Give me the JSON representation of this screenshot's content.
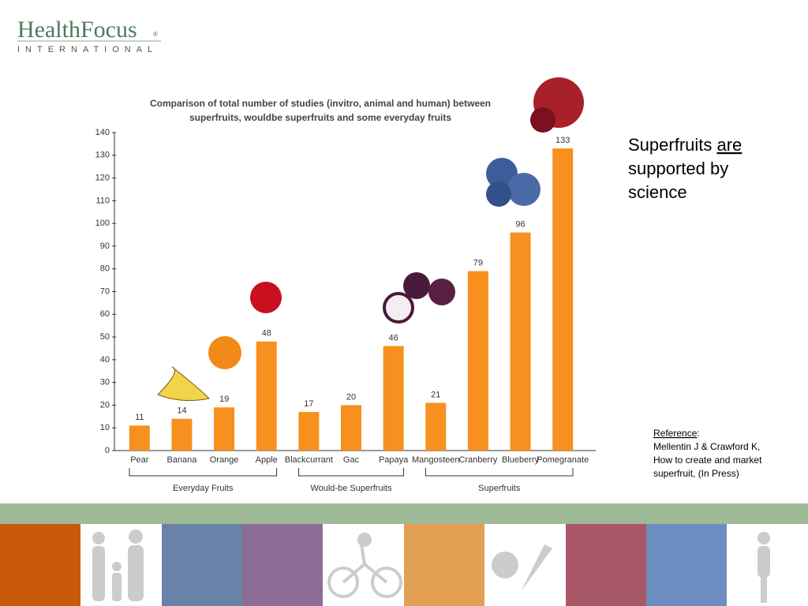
{
  "logo": {
    "name": "HealthFocus",
    "mark": "®",
    "subtitle": "INTERNATIONAL"
  },
  "chart_data": {
    "type": "bar",
    "title": [
      "Comparison of total number of studies (invitro, animal and human) between",
      "superfruits, wouldbe superfruits and some everyday fruits"
    ],
    "categories": [
      "Pear",
      "Banana",
      "Orange",
      "Apple",
      "Blackcurrant",
      "Gac",
      "Papaya",
      "Mangosteen",
      "Cranberry",
      "Blueberry",
      "Pomegranate"
    ],
    "values": [
      11,
      14,
      19,
      48,
      17,
      20,
      46,
      21,
      79,
      96,
      133
    ],
    "color": "#f7901e",
    "ylim": [
      0,
      140
    ],
    "yticks": [
      0,
      10,
      20,
      30,
      40,
      50,
      60,
      70,
      80,
      90,
      100,
      110,
      120,
      130,
      140
    ],
    "groups": [
      {
        "name": "Everyday Fruits",
        "size": 4
      },
      {
        "name": "Would-be Superfruits",
        "size": 3
      },
      {
        "name": "Superfruits",
        "size": 4
      }
    ]
  },
  "headline": {
    "before": "Superfruits ",
    "underlined": "are",
    "after": [
      "supported by",
      "science"
    ]
  },
  "reference": {
    "label": "Reference",
    "colon": ":",
    "lines": [
      "Mellentin J & Crawford K,",
      "How to create and market",
      "superfruit, (In Press)"
    ]
  }
}
